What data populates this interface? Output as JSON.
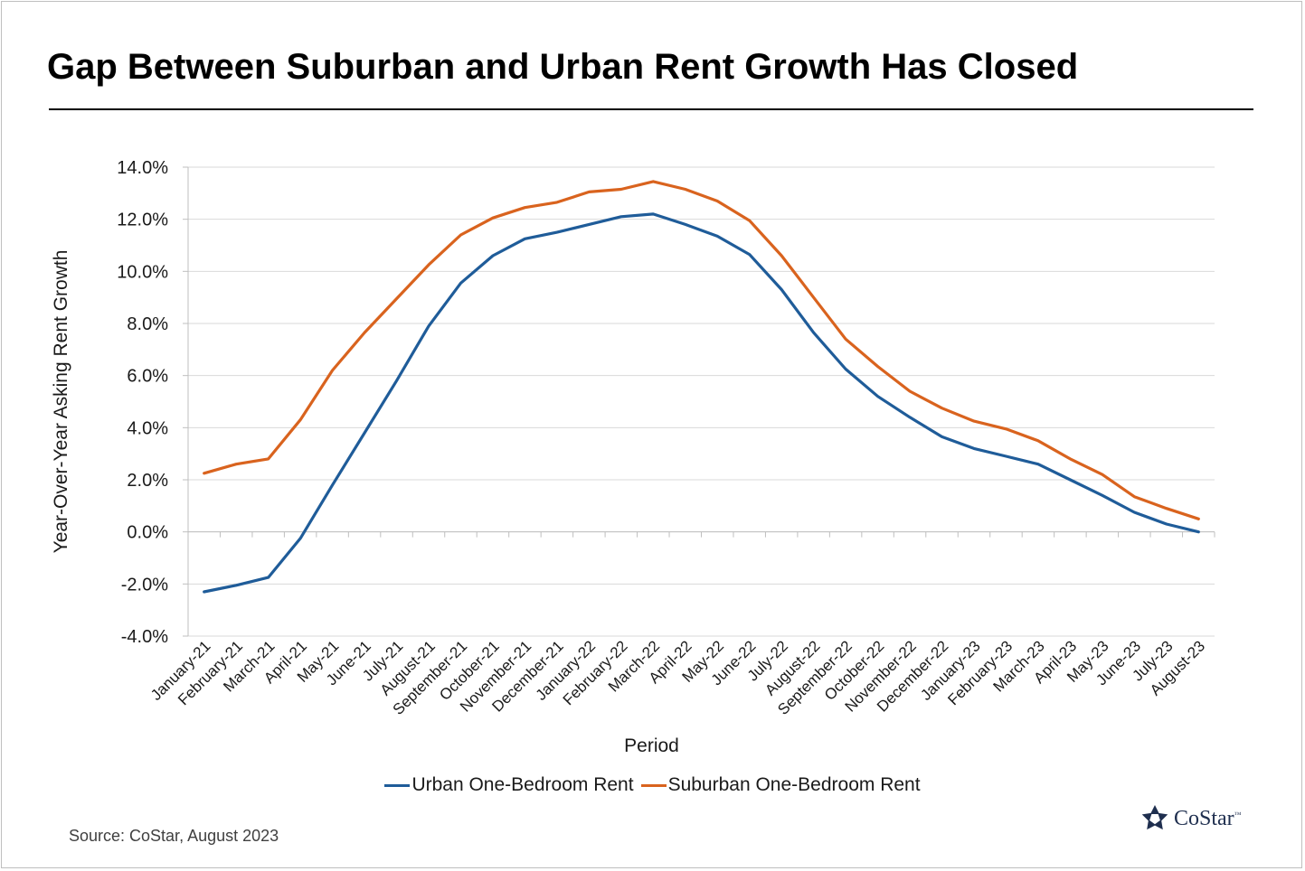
{
  "title": "Gap Between Suburban and Urban Rent Growth Has Closed",
  "source": "Source: CoStar, August 2023",
  "logo": {
    "text": "CoStar",
    "mark": "™"
  },
  "colors": {
    "urban": "#1f5c99",
    "suburban": "#d9631e",
    "grid": "#d9d9d9",
    "axis": "#bfbfbf"
  },
  "chart_data": {
    "type": "line",
    "xlabel": "Period",
    "ylabel": "Year-Over-Year Asking Rent Growth",
    "ylim": [
      -4.0,
      14.0
    ],
    "yticks": [
      "-4.0%",
      "-2.0%",
      "0.0%",
      "2.0%",
      "4.0%",
      "6.0%",
      "8.0%",
      "10.0%",
      "12.0%",
      "14.0%"
    ],
    "grid": true,
    "legend_position": "bottom",
    "categories": [
      "January-21",
      "February-21",
      "March-21",
      "April-21",
      "May-21",
      "June-21",
      "July-21",
      "August-21",
      "September-21",
      "October-21",
      "November-21",
      "December-21",
      "January-22",
      "February-22",
      "March-22",
      "April-22",
      "May-22",
      "June-22",
      "July-22",
      "August-22",
      "September-22",
      "October-22",
      "November-22",
      "December-22",
      "January-23",
      "February-23",
      "March-23",
      "April-23",
      "May-23",
      "June-23",
      "July-23",
      "August-23"
    ],
    "series": [
      {
        "name": "Urban One-Bedroom Rent",
        "values": [
          -2.3,
          -2.05,
          -1.75,
          -0.25,
          1.8,
          3.8,
          5.8,
          7.9,
          9.55,
          10.6,
          11.25,
          11.5,
          11.8,
          12.1,
          12.2,
          11.8,
          11.35,
          10.65,
          9.3,
          7.65,
          6.25,
          5.2,
          4.4,
          3.65,
          3.2,
          2.9,
          2.6,
          2.0,
          1.4,
          0.75,
          0.3,
          0.0
        ]
      },
      {
        "name": "Suburban One-Bedroom Rent",
        "values": [
          2.25,
          2.6,
          2.8,
          4.3,
          6.2,
          7.65,
          8.95,
          10.25,
          11.4,
          12.05,
          12.45,
          12.65,
          13.05,
          13.15,
          13.45,
          13.15,
          12.7,
          11.95,
          10.6,
          9.0,
          7.4,
          6.35,
          5.4,
          4.75,
          4.25,
          3.95,
          3.5,
          2.8,
          2.2,
          1.35,
          0.9,
          0.5
        ]
      }
    ]
  }
}
